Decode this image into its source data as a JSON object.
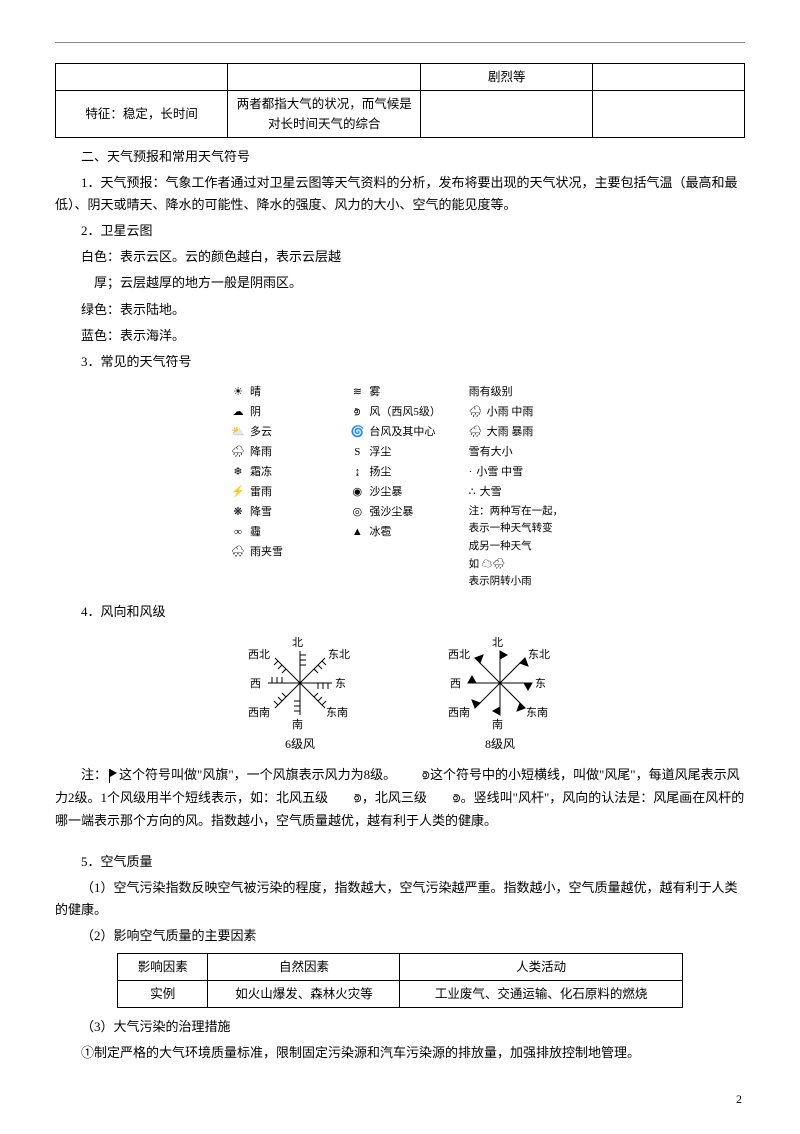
{
  "table1": {
    "r1c1": "",
    "r1c2": "",
    "r1c3": "剧烈等",
    "r1c4": "",
    "r2c1": "特征：稳定，长时间",
    "r2c2": "两者都指大气的状况，而气候是对长时间天气的综合",
    "r2c3": "",
    "r2c4": ""
  },
  "h2": "二、天气预报和常用天气符号",
  "p1": "1．天气预报：气象工作者通过对卫星云图等天气资料的分析，发布将要出现的天气状况，主要包括气温（最高和最低）、阴天或晴天、降水的可能性、降水的强度、风力的大小、空气的能见度等。",
  "p2": "2．卫星云图",
  "p3": "白色：表示云区。云的颜色越白，表示云层越",
  "p3b": "厚；云层越厚的地方一般是阴雨区。",
  "p4": "绿色：表示陆地。",
  "p5": "蓝色：表示海洋。",
  "p6": "3．常见的天气符号",
  "symbols": {
    "col1": [
      {
        "icon": "☀",
        "label": "晴"
      },
      {
        "icon": "☁",
        "label": "阴"
      },
      {
        "icon": "⛅",
        "label": "多云"
      },
      {
        "icon": "🌧",
        "label": "降雨"
      },
      {
        "icon": "❄",
        "label": "霜冻"
      },
      {
        "icon": "⚡",
        "label": "雷雨"
      },
      {
        "icon": "❋",
        "label": "降雪"
      },
      {
        "icon": "∞",
        "label": "霾"
      },
      {
        "icon": "🌨",
        "label": "雨夹雪"
      }
    ],
    "col2": [
      {
        "icon": "≋",
        "label": "雾"
      },
      {
        "icon": "⟄",
        "label": "风（西风5级）"
      },
      {
        "icon": "🌀",
        "label": "台风及其中心"
      },
      {
        "icon": "S",
        "label": "浮尘"
      },
      {
        "icon": "↨",
        "label": "扬尘"
      },
      {
        "icon": "◉",
        "label": "沙尘暴"
      },
      {
        "icon": "◎",
        "label": "强沙尘暴"
      },
      {
        "icon": "▲",
        "label": "冰雹"
      }
    ],
    "col3": {
      "title1": "雨有级别",
      "r1": "小雨  中雨",
      "r2": "大雨  暴雨",
      "title2": "雪有大小",
      "r3": "小雪  中雪",
      "r4": "大雪",
      "note1": "注：两种写在一起，",
      "note2": "表示一种天气转变",
      "note3": "成另一种天气",
      "note4": "如",
      "note5": "表示阴转小雨"
    }
  },
  "p7": "4．风向和风级",
  "wind": {
    "directions": [
      "北",
      "东北",
      "东",
      "东南",
      "南",
      "西南",
      "西",
      "西北"
    ],
    "cap1": "6级风",
    "cap2": "8级风"
  },
  "p8a": "注：",
  "p8b": "这个符号叫做\"风旗\"，一个风旗表示风力为8级。",
  "p8c": "这个符号中的小短横线，叫做\"风尾\"，每道风尾表示风力2级。1个风级用半个短线表示，如：北风五级",
  "p8d": "，北风三级",
  "p8e": "。竖线叫\"风杆\"，风向的认法是：风尾画在风杆的哪一端表示那个方向的风。指数越小，空气质量越优，越有利于人类的健康。",
  "p9": "5．空气质量",
  "p10": "（1）空气污染指数反映空气被污染的程度，指数越大，空气污染越严重。指数越小，空气质量越优，越有利于人类的健康。",
  "p11": "（2）影响空气质量的主要因素",
  "table2": {
    "h1": "影响因素",
    "h2": "自然因素",
    "h3": "人类活动",
    "r1": "实例",
    "r2": "如火山爆发、森林火灾等",
    "r3": "工业废气、交通运输、化石原料的燃烧"
  },
  "p12": "（3）大气污染的治理措施",
  "p13": "①制定严格的大气环境质量标准，限制固定污染源和汽车污染源的排放量，加强排放控制地管理。",
  "pageNumber": "2"
}
